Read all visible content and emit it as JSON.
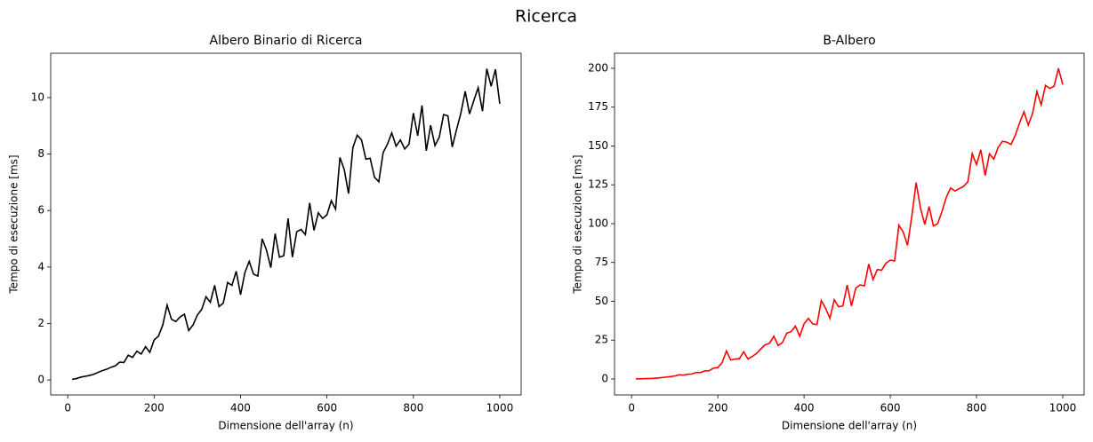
{
  "title": "Ricerca",
  "chart_data": [
    {
      "type": "line",
      "title": "Albero Binario di Ricerca",
      "xlabel": "Dimensione dell'array (n)",
      "ylabel": "Tempo di esecuzione [ms]",
      "x": [
        10,
        20,
        30,
        40,
        50,
        60,
        70,
        80,
        90,
        100,
        110,
        120,
        130,
        140,
        150,
        160,
        170,
        180,
        190,
        200,
        210,
        220,
        230,
        240,
        250,
        260,
        270,
        280,
        290,
        300,
        310,
        320,
        330,
        340,
        350,
        360,
        370,
        380,
        390,
        400,
        410,
        420,
        430,
        440,
        450,
        460,
        470,
        480,
        490,
        500,
        510,
        520,
        530,
        540,
        550,
        560,
        570,
        580,
        590,
        600,
        610,
        620,
        630,
        640,
        650,
        660,
        670,
        680,
        690,
        700,
        710,
        720,
        730,
        740,
        750,
        760,
        770,
        780,
        790,
        800,
        810,
        820,
        830,
        840,
        850,
        860,
        870,
        880,
        890,
        900,
        910,
        920,
        930,
        940,
        950,
        960,
        970,
        980,
        990,
        1000
      ],
      "series": [
        {
          "color": "#000000",
          "values": [
            0.02,
            0.05,
            0.1,
            0.13,
            0.16,
            0.2,
            0.27,
            0.33,
            0.38,
            0.45,
            0.5,
            0.63,
            0.62,
            0.88,
            0.8,
            1.02,
            0.92,
            1.18,
            0.98,
            1.42,
            1.55,
            1.95,
            2.65,
            2.15,
            2.07,
            2.23,
            2.33,
            1.75,
            1.95,
            2.3,
            2.5,
            2.95,
            2.75,
            3.35,
            2.6,
            2.72,
            3.45,
            3.35,
            3.85,
            3.02,
            3.8,
            4.2,
            3.75,
            3.68,
            5.0,
            4.6,
            3.98,
            5.18,
            4.35,
            4.4,
            5.72,
            4.35,
            5.25,
            5.33,
            5.15,
            6.27,
            5.3,
            5.92,
            5.72,
            5.85,
            6.35,
            6.05,
            7.88,
            7.45,
            6.6,
            8.23,
            8.67,
            8.5,
            7.82,
            7.85,
            7.18,
            7.02,
            8.05,
            8.35,
            8.75,
            8.28,
            8.5,
            8.18,
            8.35,
            9.45,
            8.65,
            9.72,
            8.12,
            9.02,
            8.3,
            8.6,
            9.4,
            9.35,
            8.25,
            8.87,
            9.45,
            10.22,
            9.42,
            9.9,
            10.35,
            9.52,
            11.02,
            10.4,
            11.0,
            9.78
          ]
        }
      ],
      "xlim": [
        -39.5,
        1049.5
      ],
      "ylim": [
        -0.53,
        11.57
      ],
      "xticks": [
        0,
        200,
        400,
        600,
        800,
        1000
      ],
      "yticks": [
        0,
        2,
        4,
        6,
        8,
        10
      ],
      "grid": false
    },
    {
      "type": "line",
      "title": "B-Albero",
      "xlabel": "Dimensione dell'array (n)",
      "ylabel": "Tempo di esecuzione [ms]",
      "x": [
        10,
        20,
        30,
        40,
        50,
        60,
        70,
        80,
        90,
        100,
        110,
        120,
        130,
        140,
        150,
        160,
        170,
        180,
        190,
        200,
        210,
        220,
        230,
        240,
        250,
        260,
        270,
        280,
        290,
        300,
        310,
        320,
        330,
        340,
        350,
        360,
        370,
        380,
        390,
        400,
        410,
        420,
        430,
        440,
        450,
        460,
        470,
        480,
        490,
        500,
        510,
        520,
        530,
        540,
        550,
        560,
        570,
        580,
        590,
        600,
        610,
        620,
        630,
        640,
        650,
        660,
        670,
        680,
        690,
        700,
        710,
        720,
        730,
        740,
        750,
        760,
        770,
        780,
        790,
        800,
        810,
        820,
        830,
        840,
        850,
        860,
        870,
        880,
        890,
        900,
        910,
        920,
        930,
        940,
        950,
        960,
        970,
        980,
        990,
        1000
      ],
      "series": [
        {
          "color": "#ff0000",
          "values": [
            0.1,
            0.1,
            0.2,
            0.3,
            0.4,
            0.6,
            0.9,
            1.2,
            1.5,
            1.9,
            2.7,
            2.5,
            3.0,
            3.2,
            4.2,
            4.1,
            5.2,
            5.3,
            7.0,
            7.3,
            10.5,
            18.0,
            12.2,
            12.8,
            13.0,
            17.5,
            12.8,
            14.5,
            16.5,
            19.5,
            22.0,
            23.0,
            27.5,
            21.5,
            23.5,
            29.5,
            30.5,
            34.0,
            27.5,
            35.5,
            39.0,
            35.5,
            35.0,
            50.5,
            45.5,
            39.0,
            51.0,
            46.5,
            47.0,
            60.5,
            47.0,
            58.5,
            60.5,
            60.0,
            74.0,
            64.0,
            70.5,
            70.0,
            74.5,
            76.5,
            76.0,
            99.0,
            94.5,
            86.0,
            105.0,
            126.5,
            110.0,
            99.5,
            111.0,
            98.5,
            100.0,
            108.0,
            117.0,
            123.0,
            121.0,
            122.5,
            124.0,
            127.0,
            145.0,
            138.0,
            147.5,
            131.0,
            145.0,
            141.5,
            149.0,
            153.0,
            152.5,
            151.0,
            157.0,
            165.0,
            172.0,
            163.5,
            171.0,
            185.0,
            176.5,
            189.0,
            187.0,
            188.5,
            200.0,
            189.5
          ]
        }
      ],
      "xlim": [
        -39.5,
        1049.5
      ],
      "ylim": [
        -10.3,
        209.7
      ],
      "xticks": [
        0,
        200,
        400,
        600,
        800,
        1000
      ],
      "yticks": [
        0,
        25,
        50,
        75,
        100,
        125,
        150,
        175,
        200
      ],
      "grid": false
    }
  ]
}
